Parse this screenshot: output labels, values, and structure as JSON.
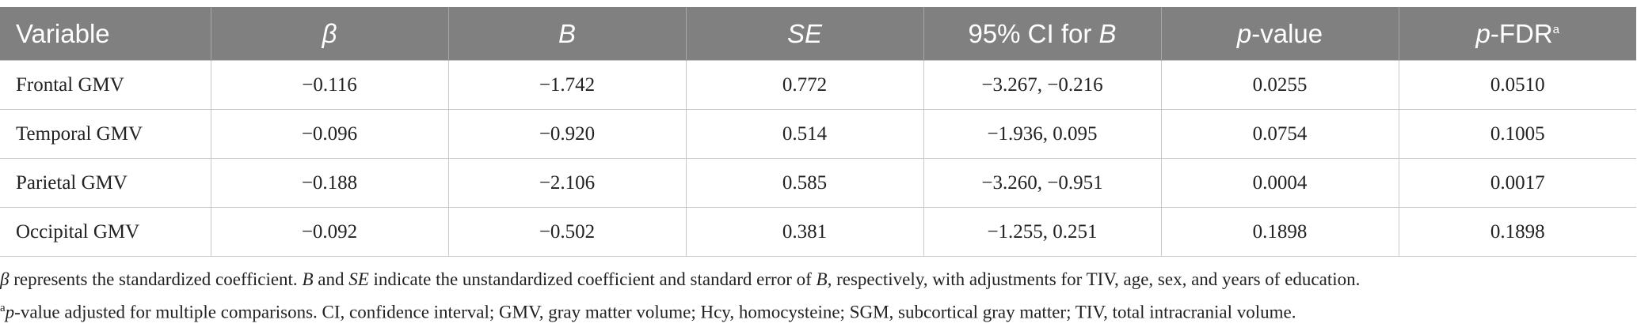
{
  "table": {
    "header": [
      [
        {
          "text": "Variable"
        }
      ],
      [
        {
          "text": "β",
          "style": "italic"
        }
      ],
      [
        {
          "text": "B",
          "style": "italic"
        }
      ],
      [
        {
          "text": "SE",
          "style": "italic"
        }
      ],
      [
        {
          "text": "95% CI for "
        },
        {
          "text": "B",
          "style": "italic"
        }
      ],
      [
        {
          "text": "p",
          "style": "italic"
        },
        {
          "text": "-value"
        }
      ],
      [
        {
          "text": "p",
          "style": "italic"
        },
        {
          "text": "-FDR"
        },
        {
          "text": "a",
          "style": "sup"
        }
      ]
    ],
    "rows": [
      [
        "Frontal GMV",
        "−0.116",
        "−1.742",
        "0.772",
        "−3.267, −0.216",
        "0.0255",
        "0.0510"
      ],
      [
        "Temporal GMV",
        "−0.096",
        "−0.920",
        "0.514",
        "−1.936, 0.095",
        "0.0754",
        "0.1005"
      ],
      [
        "Parietal GMV",
        "−0.188",
        "−2.106",
        "0.585",
        "−3.260, −0.951",
        "0.0004",
        "0.0017"
      ],
      [
        "Occipital GMV",
        "−0.092",
        "−0.502",
        "0.381",
        "−1.255, 0.251",
        "0.1898",
        "0.1898"
      ]
    ]
  },
  "footnotes": [
    [
      {
        "text": "β",
        "style": "italic"
      },
      {
        "text": " represents the standardized coefficient. "
      },
      {
        "text": "B",
        "style": "italic"
      },
      {
        "text": " and "
      },
      {
        "text": "SE",
        "style": "italic"
      },
      {
        "text": " indicate the unstandardized coefficient and standard error of "
      },
      {
        "text": "B",
        "style": "italic"
      },
      {
        "text": ", respectively, with adjustments for TIV, age, sex, and years of education."
      }
    ],
    [
      {
        "text": "a",
        "style": "sup"
      },
      {
        "text": "p",
        "style": "italic"
      },
      {
        "text": "-value adjusted for multiple comparisons. CI, confidence interval; GMV, gray matter volume; Hcy, homocysteine; SGM, subcortical gray matter; TIV, total intracranial volume."
      }
    ]
  ]
}
